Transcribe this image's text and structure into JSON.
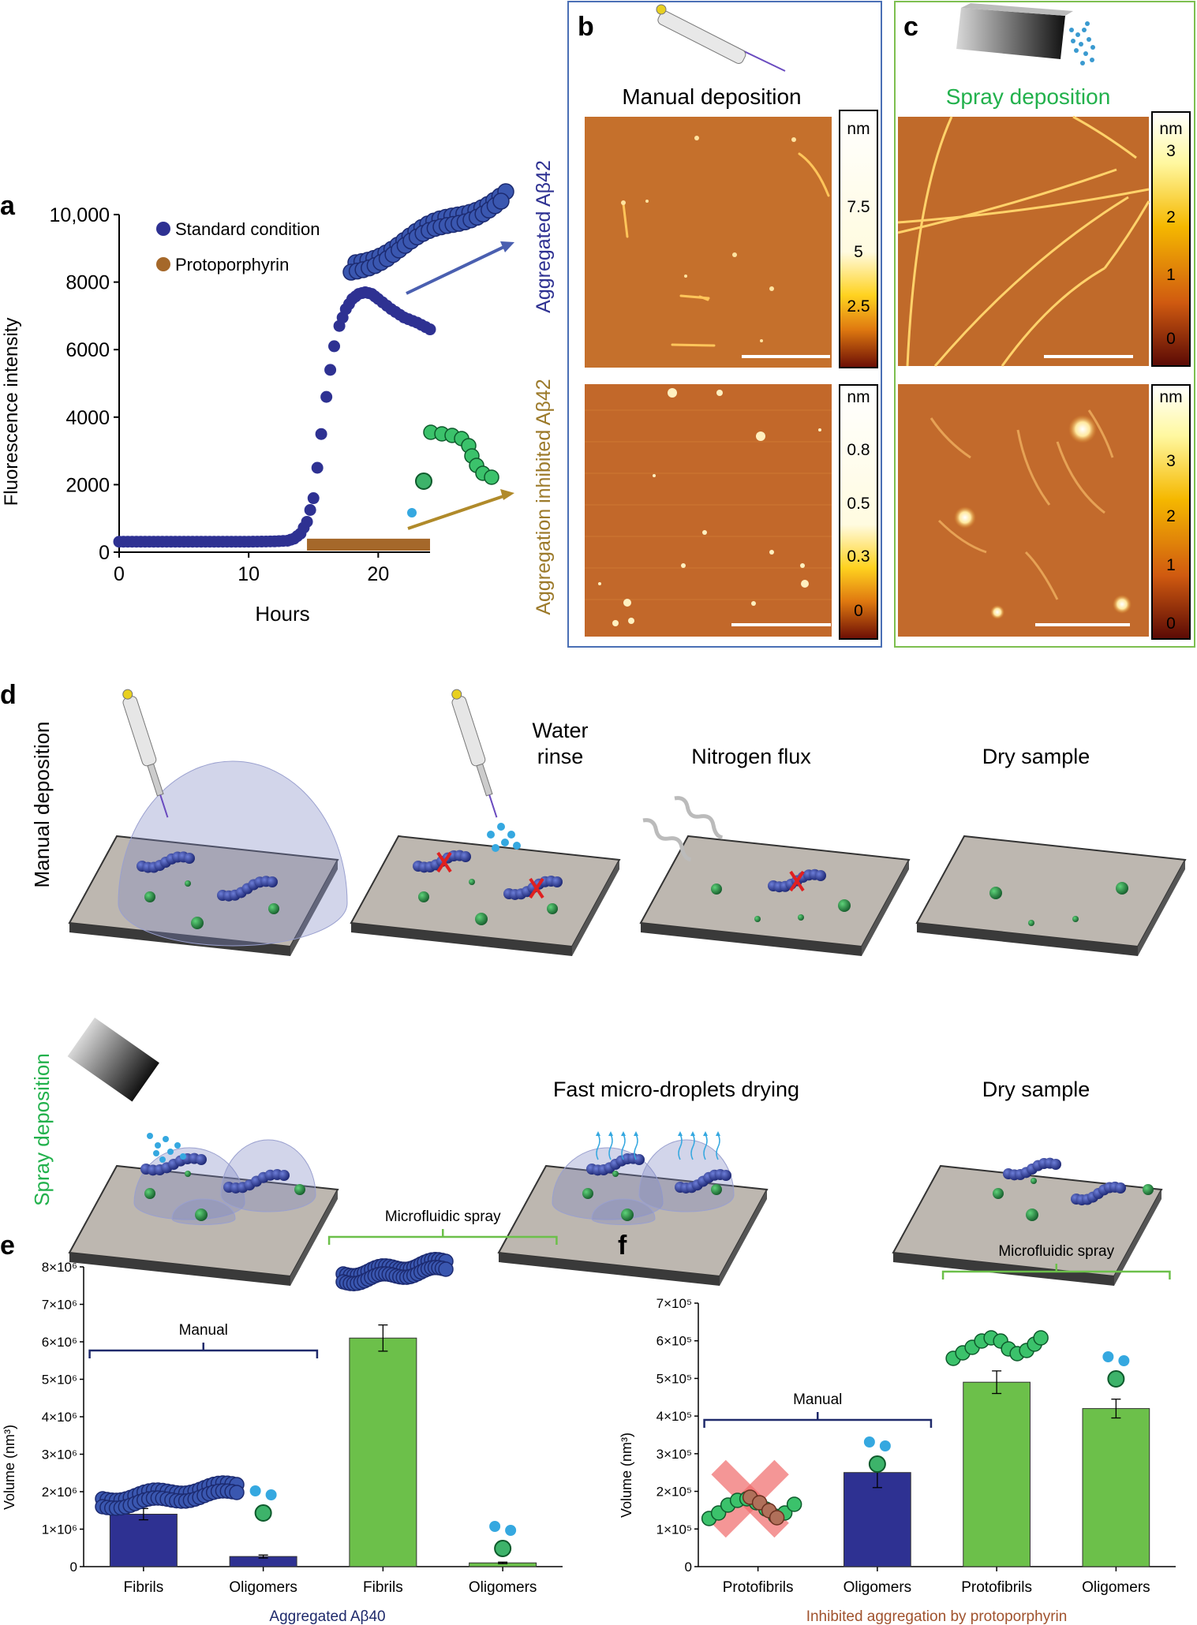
{
  "panel_letters": {
    "a": "a",
    "b": "b",
    "c": "c",
    "d": "d",
    "e": "e",
    "f": "f"
  },
  "colors": {
    "standard": "#2e3192",
    "protoporphyrin": "#a5682a",
    "blue_frame": "#4a6fb5",
    "green_frame": "#7dbf4f",
    "spray_green": "#22b14c",
    "manual_bar": "#2e3192",
    "spray_bar": "#6cc04a",
    "dark_navy": "#1f2a6b",
    "brown_label": "#a0522d",
    "gold_label": "#9c7a2a"
  },
  "panel_a": {
    "ylabel": "Fluorescence intensity",
    "xlabel": "Hours",
    "legend": [
      "Standard condition",
      "Protoporphyrin"
    ],
    "side_label_top": "Aggregated Aβ42",
    "side_label_bottom": "Aggregation inhibited Aβ42"
  },
  "panel_b": {
    "title": "Manual deposition",
    "top_unit": "nm",
    "top_ticks": [
      "7.5",
      "5",
      "2.5"
    ],
    "bottom_unit": "nm",
    "bottom_ticks": [
      "0.8",
      "0.5",
      "0.3",
      "0"
    ]
  },
  "panel_c": {
    "title": "Spray deposition",
    "top_unit": "nm",
    "top_ticks": [
      "3",
      "2",
      "1",
      "0"
    ],
    "bottom_unit": "nm",
    "bottom_ticks": [
      "3",
      "2",
      "1",
      "0"
    ]
  },
  "panel_d": {
    "row1_label": "Manual deposition",
    "row2_label": "Spray deposition",
    "step_water_1": "Water",
    "step_water_2": "rinse",
    "step_nitrogen": "Nitrogen flux",
    "step_dry_1": "Dry sample",
    "step_fast": "Fast micro-droplets drying",
    "step_dry_2": "Dry sample"
  },
  "panel_e": {
    "ylabel": "Volume (nm³)",
    "group_label": "Aggregated Aβ40",
    "manual_label": "Manual",
    "spray_label": "Microfluidic spray"
  },
  "panel_f": {
    "ylabel": "Volume (nm³)",
    "group_label": "Inhibited aggregation by protoporphyrin",
    "manual_label": "Manual",
    "spray_label": "Microfluidic spray"
  },
  "chart_data": [
    {
      "id": "a",
      "type": "scatter",
      "xlabel": "Hours",
      "ylabel": "Fluorescence intensity",
      "xlim": [
        0,
        24
      ],
      "ylim": [
        0,
        10000
      ],
      "xticks": [
        "0",
        "10",
        "20"
      ],
      "yticks": [
        "0",
        "2000",
        "4000",
        "6000",
        "8000",
        "10,000"
      ],
      "series": [
        {
          "name": "Standard condition",
          "x": [
            0,
            2,
            4,
            6,
            8,
            10,
            12,
            13,
            13.5,
            14,
            14.5,
            15,
            15.3,
            15.6,
            16,
            16.3,
            16.6,
            17,
            17.5,
            18,
            18.5,
            19,
            19.5,
            20,
            21,
            22,
            23,
            24
          ],
          "y": [
            310,
            310,
            310,
            310,
            310,
            310,
            320,
            340,
            400,
            550,
            900,
            1600,
            2500,
            3500,
            4600,
            5400,
            6100,
            6700,
            7200,
            7500,
            7650,
            7700,
            7650,
            7500,
            7200,
            6950,
            6800,
            6600
          ]
        },
        {
          "name": "Protoporphyrin",
          "x": [
            0,
            24
          ],
          "y": [
            300,
            300
          ]
        }
      ]
    },
    {
      "id": "e",
      "type": "bar",
      "title": "Aggregated Aβ40",
      "ylabel": "Volume (nm³)",
      "categories": [
        "Fibrils",
        "Oligomers",
        "Fibrils",
        "Oligomers"
      ],
      "groups": [
        "Manual",
        "Manual",
        "Microfluidic spray",
        "Microfluidic spray"
      ],
      "values": [
        1400000,
        270000,
        6100000,
        100000
      ],
      "errors": [
        150000,
        40000,
        350000,
        20000
      ],
      "ylim": [
        0,
        8000000
      ],
      "yticks": [
        "0",
        "1×10⁶",
        "2×10⁶",
        "3×10⁶",
        "4×10⁶",
        "5×10⁶",
        "6×10⁶",
        "7×10⁶",
        "8×10⁶"
      ]
    },
    {
      "id": "f",
      "type": "bar",
      "title": "Inhibited aggregation by protoporphyrin",
      "ylabel": "Volume (nm³)",
      "categories": [
        "Protofibrils",
        "Oligomers",
        "Protofibrils",
        "Oligomers"
      ],
      "groups": [
        "Manual",
        "Manual",
        "Microfluidic spray",
        "Microfluidic spray"
      ],
      "values": [
        0,
        250000,
        490000,
        420000
      ],
      "errors": [
        0,
        40000,
        30000,
        25000
      ],
      "ylim": [
        0,
        700000
      ],
      "yticks": [
        "0",
        "1×10⁵",
        "2×10⁵",
        "3×10⁵",
        "4×10⁵",
        "5×10⁵",
        "6×10⁵",
        "7×10⁵"
      ]
    }
  ]
}
